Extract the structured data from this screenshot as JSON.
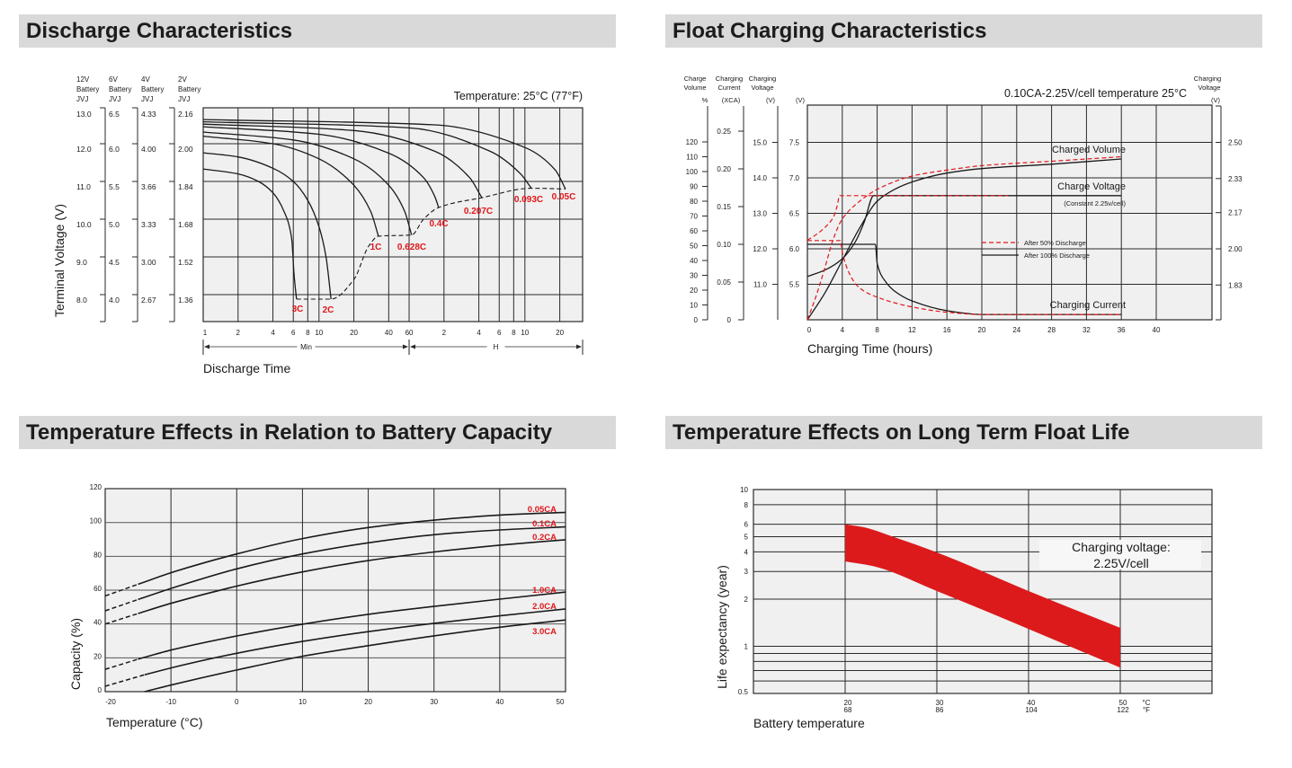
{
  "colors": {
    "curve": "#1a1a1a",
    "grid": "#2a2a2a",
    "plot_bg": "#f0f0f0",
    "accent_red": "#e0161b",
    "header_bg": "#d9d9d9"
  },
  "chart_data": [
    {
      "type": "line",
      "title": "Discharge Characteristics",
      "annotation": "Temperature: 25°C (77°F)",
      "ylabel": "Terminal Voltage (V)",
      "xlabel": "Discharge Time",
      "x_scale": "log",
      "x_unit": "minutes",
      "xlim": [
        1,
        1900
      ],
      "ylim_12v": [
        7.3,
        13.0
      ],
      "grid": true,
      "y_tick_values_12v": [
        13,
        12,
        11,
        10,
        9,
        8
      ],
      "voltage_scales": [
        {
          "battery": "12V",
          "line2": "Battery",
          "line3": "JVJ",
          "ticks": [
            "13.0",
            "12.0",
            "11.0",
            "10.0",
            "9.0",
            "8.0"
          ]
        },
        {
          "battery": "6V",
          "line2": "Battery",
          "line3": "JVJ",
          "ticks": [
            "6.5",
            "6.0",
            "5.5",
            "5.0",
            "4.5",
            "4.0"
          ]
        },
        {
          "battery": "4V",
          "line2": "Battery",
          "line3": "JVJ",
          "ticks": [
            "4.33",
            "4.00",
            "3.66",
            "3.33",
            "3.00",
            "2.67"
          ]
        },
        {
          "battery": "2V",
          "line2": "Battery",
          "line3": "JVJ",
          "ticks": [
            "2.16",
            "2.00",
            "1.84",
            "1.68",
            "1.52",
            "1.36"
          ]
        }
      ],
      "x_ticks": [
        {
          "label": "1",
          "minutes": 1
        },
        {
          "label": "2",
          "minutes": 2
        },
        {
          "label": "4",
          "minutes": 4
        },
        {
          "label": "6",
          "minutes": 6
        },
        {
          "label": "8",
          "minutes": 8
        },
        {
          "label": "10",
          "minutes": 10
        },
        {
          "label": "20",
          "minutes": 20
        },
        {
          "label": "40",
          "minutes": 40
        },
        {
          "label": "60",
          "minutes": 60
        },
        {
          "label": "2",
          "minutes": 120
        },
        {
          "label": "4",
          "minutes": 240
        },
        {
          "label": "6",
          "minutes": 360
        },
        {
          "label": "8",
          "minutes": 480
        },
        {
          "label": "10",
          "minutes": 600
        },
        {
          "label": "20",
          "minutes": 1200
        }
      ],
      "x_ranges": [
        {
          "label": "Min",
          "from_minutes": 1,
          "to_minutes": 60
        },
        {
          "label": "H",
          "from_minutes": 60,
          "to_minutes": 1900
        }
      ],
      "series": [
        {
          "name": "3C",
          "points": [
            [
              1,
              11.33
            ],
            [
              2,
              11.2
            ],
            [
              3,
              11.0
            ],
            [
              4,
              10.7
            ],
            [
              5,
              10.2
            ],
            [
              5.8,
              9.5
            ],
            [
              6.1,
              8.5
            ],
            [
              6.4,
              7.88
            ]
          ]
        },
        {
          "name": "2C",
          "points": [
            [
              1,
              11.76
            ],
            [
              2,
              11.65
            ],
            [
              4,
              11.35
            ],
            [
              6,
              11.0
            ],
            [
              8,
              10.5
            ],
            [
              10,
              9.8
            ],
            [
              11.5,
              9.0
            ],
            [
              12.7,
              7.88
            ]
          ]
        },
        {
          "name": "1C",
          "points": [
            [
              1,
              12.2
            ],
            [
              4,
              12.0
            ],
            [
              10,
              11.6
            ],
            [
              20,
              10.9
            ],
            [
              28,
              10.2
            ],
            [
              32.6,
              9.55
            ]
          ]
        },
        {
          "name": "0.628C",
          "points": [
            [
              1,
              12.31
            ],
            [
              6,
              12.1
            ],
            [
              20,
              11.6
            ],
            [
              40,
              10.9
            ],
            [
              55,
              10.2
            ],
            [
              63,
              9.58
            ]
          ]
        },
        {
          "name": "0.4C",
          "points": [
            [
              1,
              12.45
            ],
            [
              10,
              12.25
            ],
            [
              40,
              11.75
            ],
            [
              80,
              11.1
            ],
            [
              100,
              10.6
            ],
            [
              108,
              10.31
            ]
          ]
        },
        {
          "name": "0.207C",
          "points": [
            [
              1,
              12.52
            ],
            [
              20,
              12.35
            ],
            [
              100,
              11.8
            ],
            [
              200,
              11.1
            ],
            [
              255,
              10.57
            ]
          ]
        },
        {
          "name": "0.093C",
          "points": [
            [
              1,
              12.58
            ],
            [
              60,
              12.42
            ],
            [
              300,
              11.8
            ],
            [
              550,
              11.2
            ],
            [
              683,
              10.82
            ]
          ]
        },
        {
          "name": "0.05C",
          "points": [
            [
              1,
              12.64
            ],
            [
              100,
              12.5
            ],
            [
              600,
              11.9
            ],
            [
              1100,
              11.3
            ],
            [
              1345,
              10.8
            ]
          ]
        }
      ],
      "cutoff_line": [
        [
          6.4,
          7.88
        ],
        [
          12.7,
          7.88
        ],
        [
          20,
          8.4
        ],
        [
          27,
          9.3
        ],
        [
          32.6,
          9.55
        ],
        [
          63,
          9.58
        ],
        [
          80,
          10.0
        ],
        [
          108,
          10.31
        ],
        [
          255,
          10.57
        ],
        [
          683,
          10.82
        ],
        [
          1345,
          10.8
        ]
      ]
    },
    {
      "type": "line",
      "title": "Float Charging Characteristics",
      "annotation": "0.10CA-2.25V/cell  temperature 25°C",
      "xlabel": "Charging Time (hours)",
      "xlim": [
        0,
        46.4
      ],
      "grid": true,
      "x_ticks": [
        0,
        4,
        8,
        12,
        16,
        20,
        24,
        28,
        32,
        36,
        40
      ],
      "axes": {
        "volume": {
          "line1": "Charge",
          "line2": "Volume",
          "unit": "%",
          "ticks": [
            0,
            10,
            20,
            30,
            40,
            50,
            60,
            70,
            80,
            90,
            100,
            110,
            120
          ]
        },
        "current": {
          "line1": "Charging",
          "line2": "Current",
          "unit": "(XCA)",
          "ticks": [
            "0",
            "0.05",
            "0.10",
            "0.15",
            "0.20",
            "0.25"
          ]
        },
        "voltage_12v": {
          "line1": "Charging",
          "line2": "Voltage",
          "unit": "(V)",
          "ticks": [
            "11.0",
            "12.0",
            "13.0",
            "14.0",
            "15.0"
          ]
        },
        "voltage_6v": {
          "unit": "(V)",
          "ticks": [
            "5.5",
            "6.0",
            "6.5",
            "7.0",
            "7.5"
          ]
        },
        "voltage_cell": {
          "line1": "Charging",
          "line2": "Voltage",
          "unit": "(V)",
          "ticks": [
            "1.83",
            "2.00",
            "2.17",
            "2.33",
            "2.50"
          ]
        }
      },
      "curve_labels": {
        "volume": "Charged Volume",
        "voltage": "Charge Voltage",
        "voltage_note": "(Constant 2.25v/cell)",
        "current": "Charging Current"
      },
      "legend": [
        {
          "label": "After  50% Discharge",
          "style": "dashed",
          "color": "#e0161b"
        },
        {
          "label": "After 100% Discharge",
          "style": "solid",
          "color": "#1a1a1a"
        }
      ],
      "legend_position": "center-right",
      "series": {
        "volume_after_100": [
          [
            0,
            0
          ],
          [
            2,
            18
          ],
          [
            4,
            40
          ],
          [
            6,
            62
          ],
          [
            8,
            80
          ],
          [
            10,
            88
          ],
          [
            12,
            93
          ],
          [
            16,
            99
          ],
          [
            20,
            102
          ],
          [
            28,
            105
          ],
          [
            36,
            108.5
          ]
        ],
        "volume_after_50": [
          [
            0,
            0
          ],
          [
            1,
            16
          ],
          [
            2,
            35
          ],
          [
            3,
            55
          ],
          [
            4,
            68
          ],
          [
            6,
            80
          ],
          [
            8,
            88
          ],
          [
            12,
            97
          ],
          [
            16,
            101
          ],
          [
            20,
            104
          ],
          [
            28,
            107
          ],
          [
            36,
            110
          ]
        ],
        "voltage_after_100": [
          [
            0,
            5.61
          ],
          [
            2,
            5.7
          ],
          [
            4,
            5.86
          ],
          [
            5.5,
            6.1
          ],
          [
            6.5,
            6.37
          ],
          [
            7.6,
            6.75
          ],
          [
            36,
            6.75
          ]
        ],
        "voltage_after_50": [
          [
            0,
            6.12
          ],
          [
            1,
            6.2
          ],
          [
            2,
            6.3
          ],
          [
            3,
            6.45
          ],
          [
            3.4,
            6.6
          ],
          [
            3.7,
            6.75
          ],
          [
            23,
            6.75
          ]
        ],
        "current_after_100": [
          [
            0,
            0.1
          ],
          [
            7.8,
            0.1
          ],
          [
            8,
            0.075
          ],
          [
            9,
            0.05
          ],
          [
            10,
            0.038
          ],
          [
            12,
            0.025
          ],
          [
            16,
            0.012
          ],
          [
            20,
            0.007
          ],
          [
            36,
            0.007
          ]
        ],
        "current_after_50": [
          [
            0,
            0.105
          ],
          [
            3.8,
            0.105
          ],
          [
            4,
            0.09
          ],
          [
            5,
            0.057
          ],
          [
            6,
            0.042
          ],
          [
            8,
            0.03
          ],
          [
            12,
            0.017
          ],
          [
            16,
            0.01
          ],
          [
            20,
            0.007
          ],
          [
            36,
            0.007
          ]
        ]
      }
    },
    {
      "type": "line",
      "title": "Temperature Effects in Relation to Battery Capacity",
      "xlabel": "Temperature (°C)",
      "ylabel": "Capacity (%)",
      "xlim": [
        -20,
        50
      ],
      "ylim": [
        0,
        120
      ],
      "grid": true,
      "x_ticks": [
        -20,
        -10,
        0,
        10,
        20,
        30,
        40,
        50
      ],
      "y_ticks": [
        0,
        20,
        40,
        60,
        80,
        100,
        120
      ],
      "series": [
        {
          "name": "0.05CA",
          "dashed_until": -15,
          "points": [
            [
              -20,
              56.6
            ],
            [
              -15,
              63.5
            ],
            [
              -10,
              70.3
            ],
            [
              0,
              81.4
            ],
            [
              10,
              90.5
            ],
            [
              20,
              97
            ],
            [
              30,
              101.4
            ],
            [
              40,
              104.4
            ],
            [
              50,
              106
            ]
          ]
        },
        {
          "name": "0.1CA",
          "dashed_until": -15,
          "points": [
            [
              -20,
              47.8
            ],
            [
              -15,
              54.5
            ],
            [
              -10,
              61
            ],
            [
              0,
              72.6
            ],
            [
              10,
              81.4
            ],
            [
              20,
              88
            ],
            [
              30,
              92.8
            ],
            [
              40,
              95.6
            ],
            [
              50,
              97.4
            ]
          ]
        },
        {
          "name": "0.2CA",
          "dashed_until": -15,
          "points": [
            [
              -20,
              40
            ],
            [
              -15,
              46.2
            ],
            [
              -10,
              52.2
            ],
            [
              0,
              62.4
            ],
            [
              10,
              70.8
            ],
            [
              20,
              77.5
            ],
            [
              30,
              82.6
            ],
            [
              40,
              86.6
            ],
            [
              50,
              89.8
            ]
          ]
        },
        {
          "name": "1.0CA",
          "dashed_until": -15,
          "points": [
            [
              -20,
              13.2
            ],
            [
              -15,
              19.2
            ],
            [
              -10,
              24.6
            ],
            [
              0,
              32.9
            ],
            [
              10,
              39.9
            ],
            [
              20,
              45.7
            ],
            [
              30,
              50.4
            ],
            [
              40,
              54.7
            ],
            [
              50,
              58.9
            ]
          ]
        },
        {
          "name": "2.0CA",
          "dashed_until": -14,
          "points": [
            [
              -20,
              3.2
            ],
            [
              -14,
              10
            ],
            [
              -10,
              14
            ],
            [
              0,
              22.7
            ],
            [
              10,
              29.7
            ],
            [
              20,
              35.5
            ],
            [
              30,
              40.4
            ],
            [
              40,
              44.8
            ],
            [
              50,
              48.9
            ]
          ]
        },
        {
          "name": "3.0CA",
          "dashed_until": null,
          "points": [
            [
              -14,
              0
            ],
            [
              -10,
              3.9
            ],
            [
              0,
              12.8
            ],
            [
              10,
              20.9
            ],
            [
              20,
              27.2
            ],
            [
              30,
              33
            ],
            [
              40,
              38.1
            ],
            [
              50,
              42.4
            ]
          ]
        }
      ]
    },
    {
      "type": "area",
      "title": "Temperature Effects on Long Term Float Life",
      "xlabel": "Battery temperature",
      "ylabel": "Life expectancy (year)",
      "y_scale": "log",
      "xlim": [
        10,
        60
      ],
      "ylim": [
        0.5,
        10
      ],
      "grid": true,
      "x_ticks": [
        {
          "c": "20",
          "f": "68"
        },
        {
          "c": "30",
          "f": "86"
        },
        {
          "c": "40",
          "f": "104"
        },
        {
          "c": "50",
          "f": "122"
        }
      ],
      "x_units": {
        "c": "°C",
        "f": "°F"
      },
      "y_ticks": [
        "0.5",
        "1",
        "2",
        "3",
        "4",
        "5",
        "6",
        "8",
        "10"
      ],
      "y_gridlines": [
        0.6,
        0.7,
        0.8,
        0.9,
        1,
        2,
        3,
        4,
        5,
        6,
        8
      ],
      "annotation": [
        "Charging voltage:",
        "2.25V/cell"
      ],
      "band_color": "#dc1a1c",
      "band_upper": [
        [
          20,
          6
        ],
        [
          22,
          5.75
        ],
        [
          25,
          5.05
        ],
        [
          30,
          3.97
        ],
        [
          40,
          2.25
        ],
        [
          50,
          1.31
        ]
      ],
      "band_lower": [
        [
          20,
          3.48
        ],
        [
          23,
          3.25
        ],
        [
          30,
          2.25
        ],
        [
          40,
          1.29
        ],
        [
          50,
          0.73
        ]
      ]
    }
  ]
}
